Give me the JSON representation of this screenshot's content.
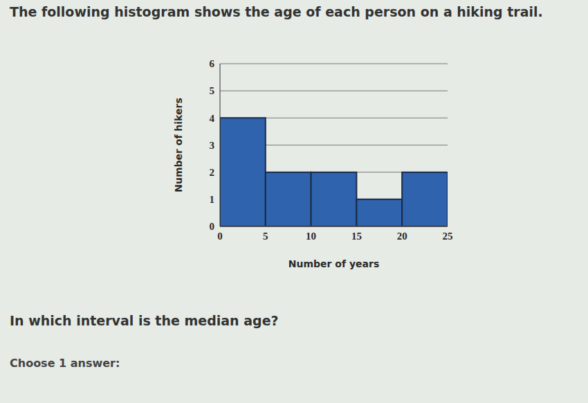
{
  "chart_data": {
    "type": "histogram",
    "title": "The following histogram shows the age of each person on a hiking trail.",
    "annotations": [
      "In which interval is the median age?",
      "Choose 1 answer:"
    ],
    "x_label": "Number of years",
    "y_label": "Number of hikers",
    "bins": [
      0,
      5,
      10,
      15,
      20,
      25
    ],
    "values": [
      4,
      2,
      2,
      1,
      2
    ],
    "color": "#2f63ae",
    "xlim": [
      0,
      25
    ],
    "xticks": [
      0,
      5,
      10,
      15,
      20,
      25
    ],
    "ylim": [
      0,
      6
    ],
    "yticks": [
      0,
      1,
      2,
      3,
      4,
      5,
      6
    ],
    "grid": true
  }
}
